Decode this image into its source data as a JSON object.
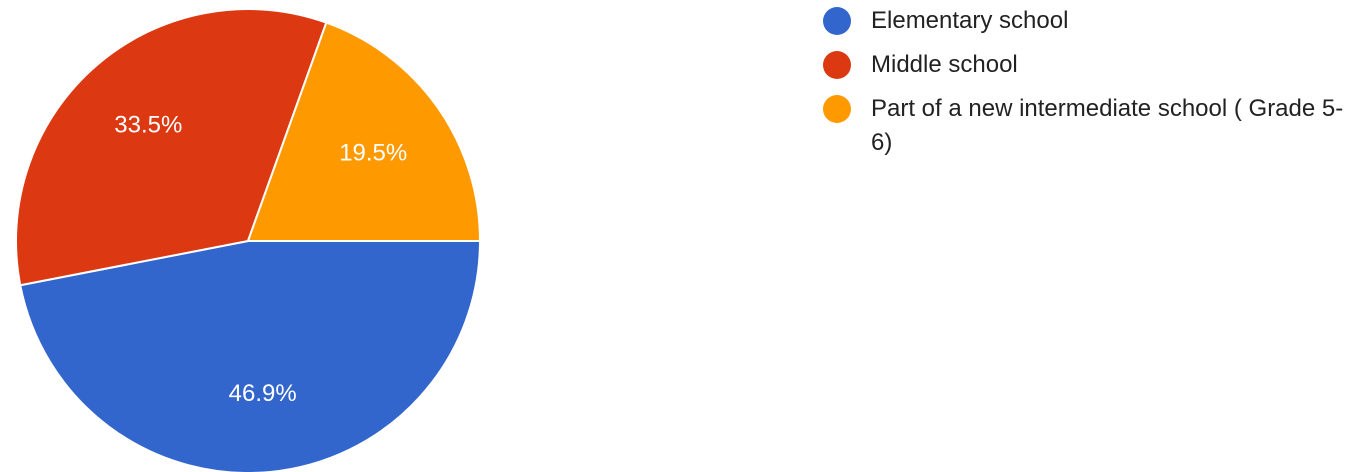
{
  "chart_data": {
    "type": "pie",
    "title": "",
    "legend_position": "top-right",
    "slices": [
      {
        "name": "Elementary school",
        "value": 46.9,
        "label": "46.9%",
        "color": "#3366cc"
      },
      {
        "name": "Middle school",
        "value": 33.5,
        "label": "33.5%",
        "color": "#dc3912"
      },
      {
        "name": "Part of a new intermediate school ( Grade 5-6)",
        "value": 19.5,
        "label": "19.5%",
        "color": "#ff9900"
      }
    ]
  }
}
